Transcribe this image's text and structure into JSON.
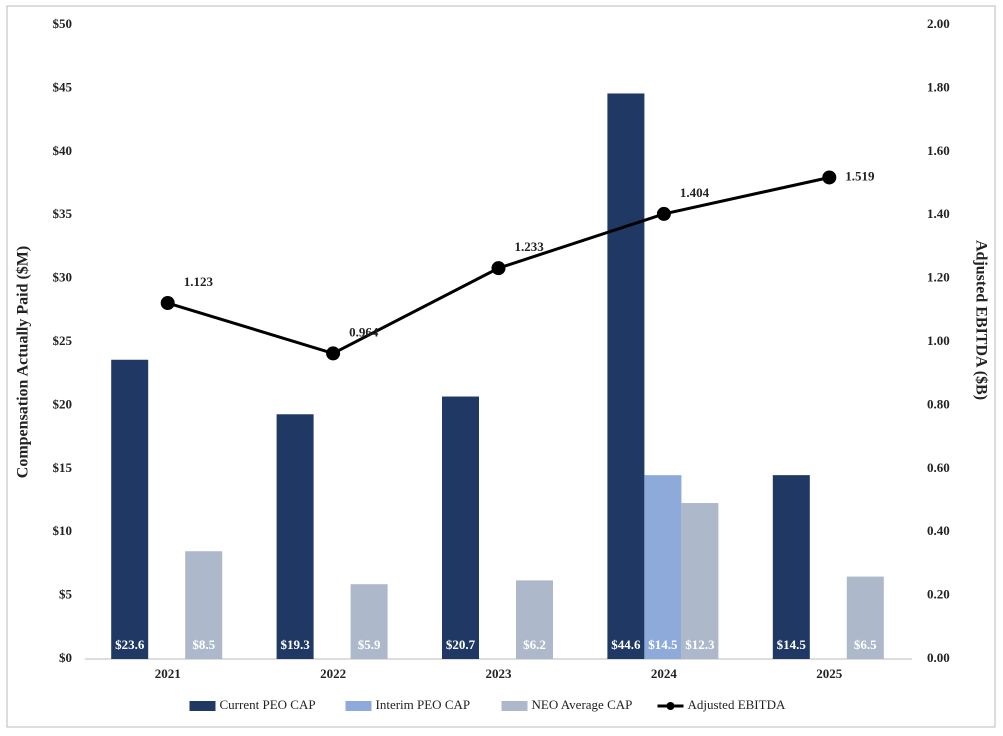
{
  "chart_data": {
    "type": "bar",
    "y_label": "Compensation Actually Paid ($M)",
    "y2_label": "Adjusted EBITDA ($B)",
    "categories": [
      "2021",
      "2022",
      "2023",
      "2024",
      "2025"
    ],
    "series": [
      {
        "name": "Current PEO CAP",
        "color": "#1f3864",
        "values": [
          23.6,
          19.3,
          20.7,
          44.6,
          14.5
        ],
        "value_labels": [
          "$23.6",
          "$19.3",
          "$20.7",
          "$44.6",
          "$14.5"
        ]
      },
      {
        "name": "Interim PEO CAP",
        "color": "#8eaadb",
        "values": [
          null,
          null,
          null,
          14.5,
          null
        ],
        "value_labels": [
          null,
          null,
          null,
          "$14.5",
          null
        ]
      },
      {
        "name": "NEO Average CAP",
        "color": "#adb9ca",
        "values": [
          8.5,
          5.9,
          6.2,
          12.3,
          6.5
        ],
        "value_labels": [
          "$8.5",
          "$5.9",
          "$6.2",
          "$12.3",
          "$6.5"
        ]
      },
      {
        "name": "Adjusted EBITDA",
        "type": "line",
        "axis": "y2",
        "color": "#000000",
        "values": [
          1.123,
          0.964,
          1.233,
          1.404,
          1.519
        ]
      }
    ],
    "ylim": [
      0,
      50
    ],
    "yticks": [
      {
        "value": 0,
        "label": "$0"
      },
      {
        "value": 5,
        "label": "$5"
      },
      {
        "value": 10,
        "label": "$10"
      },
      {
        "value": 15,
        "label": "$15"
      },
      {
        "value": 20,
        "label": "$20"
      },
      {
        "value": 25,
        "label": "$25"
      },
      {
        "value": 30,
        "label": "$30"
      },
      {
        "value": 35,
        "label": "$35"
      },
      {
        "value": 40,
        "label": "$40"
      },
      {
        "value": 45,
        "label": "$45"
      },
      {
        "value": 50,
        "label": "$50"
      }
    ],
    "y2lim": [
      0,
      2
    ],
    "y2ticks": [
      {
        "value": 0,
        "label": "0.00"
      },
      {
        "value": 0.2,
        "label": "0.20"
      },
      {
        "value": 0.4,
        "label": "0.40"
      },
      {
        "value": 0.6,
        "label": "0.60"
      },
      {
        "value": 0.8,
        "label": "0.80"
      },
      {
        "value": 1,
        "label": "1.00"
      },
      {
        "value": 1.2,
        "label": "1.20"
      },
      {
        "value": 1.4,
        "label": "1.40"
      },
      {
        "value": 1.6,
        "label": "1.60"
      },
      {
        "value": 1.8,
        "label": "1.80"
      },
      {
        "value": 2,
        "label": "2.00"
      }
    ],
    "grid": false,
    "legend": "bottom"
  }
}
